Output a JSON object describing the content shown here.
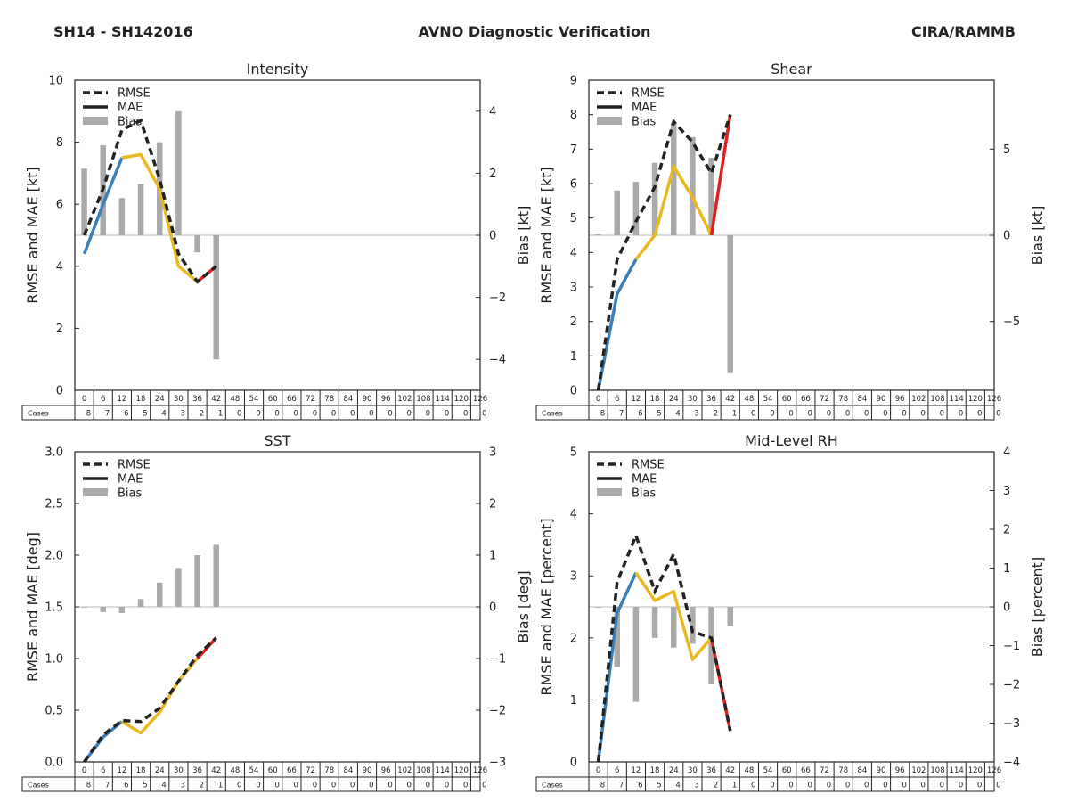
{
  "header": {
    "left": "SH14 - SH142016",
    "center": "AVNO Diagnostic Verification",
    "right": "CIRA/RAMMB"
  },
  "legend_labels": [
    "RMSE",
    "MAE",
    "Bias"
  ],
  "colors": {
    "rmse": "#222222",
    "mae_segments": [
      "#3a7fb9",
      "#e8b922",
      "#e02020"
    ],
    "bias": "#aaaaaa",
    "zero_line": "#bbbbbb"
  },
  "cases_label": "Cases",
  "hours": [
    0,
    6,
    12,
    18,
    24,
    30,
    36,
    42,
    48,
    54,
    60,
    66,
    72,
    78,
    84,
    90,
    96,
    102,
    108,
    114,
    120,
    126
  ],
  "cases": [
    8,
    7,
    6,
    5,
    4,
    3,
    2,
    1,
    0,
    0,
    0,
    0,
    0,
    0,
    0,
    0,
    0,
    0,
    0,
    0,
    0,
    0
  ],
  "chart_data": [
    {
      "type": "line",
      "title": "Intensity",
      "ylabel": "RMSE and MAE [kt]",
      "y2label": "Bias [kt]",
      "ylim": [
        0,
        10
      ],
      "yticks": [
        0,
        2,
        4,
        6,
        8,
        10
      ],
      "ytick_labels": [
        "0",
        "2",
        "4",
        "6",
        "8",
        "10"
      ],
      "y2lim": [
        -5,
        5
      ],
      "y2ticks": [
        -4,
        -2,
        0,
        2,
        4
      ],
      "y2tick_labels": [
        "−4",
        "−2",
        "0",
        "2",
        "4"
      ],
      "x": [
        0,
        6,
        12,
        18,
        24,
        30,
        36,
        42
      ],
      "rmse": [
        5.0,
        6.5,
        8.4,
        8.7,
        6.8,
        4.4,
        3.5,
        4.0
      ],
      "mae": [
        4.4,
        6.0,
        7.5,
        7.6,
        6.5,
        4.0,
        3.5,
        4.0
      ],
      "mae_segment_ends": [
        2,
        6,
        7
      ],
      "bias": [
        2.15,
        2.9,
        1.2,
        1.65,
        3.0,
        4.0,
        -0.55,
        -4.0
      ]
    },
    {
      "type": "line",
      "title": "Shear",
      "ylabel": "RMSE and MAE [kt]",
      "y2label": "Bias [kt]",
      "ylim": [
        0,
        9
      ],
      "yticks": [
        0,
        1,
        2,
        3,
        4,
        5,
        6,
        7,
        8,
        9
      ],
      "ytick_labels": [
        "0",
        "1",
        "2",
        "3",
        "4",
        "5",
        "6",
        "7",
        "8",
        "9"
      ],
      "y2lim": [
        -9,
        9
      ],
      "y2ticks": [
        -5,
        0,
        5
      ],
      "y2tick_labels": [
        "−5",
        "0",
        "5"
      ],
      "x": [
        0,
        6,
        12,
        18,
        24,
        30,
        36,
        42
      ],
      "rmse": [
        0.0,
        3.8,
        4.9,
        5.9,
        7.8,
        7.2,
        6.3,
        8.0
      ],
      "mae": [
        0.0,
        2.8,
        3.8,
        4.5,
        6.5,
        5.6,
        4.5,
        8.0
      ],
      "mae_segment_ends": [
        2,
        6,
        7
      ],
      "bias": [
        0.05,
        2.6,
        3.1,
        4.2,
        6.5,
        5.7,
        4.5,
        -8.0
      ]
    },
    {
      "type": "line",
      "title": "SST",
      "ylabel": "RMSE and MAE [deg]",
      "y2label": "Bias [deg]",
      "ylim": [
        0,
        3
      ],
      "yticks": [
        0,
        0.5,
        1.0,
        1.5,
        2.0,
        2.5,
        3.0
      ],
      "ytick_labels": [
        "0.0",
        "0.5",
        "1.0",
        "1.5",
        "2.0",
        "2.5",
        "3.0"
      ],
      "y2lim": [
        -3,
        3
      ],
      "y2ticks": [
        -3,
        -2,
        -1,
        0,
        1,
        2,
        3
      ],
      "y2tick_labels": [
        "−3",
        "−2",
        "−1",
        "0",
        "1",
        "2",
        "3"
      ],
      "x": [
        0,
        6,
        12,
        18,
        24,
        30,
        36,
        42
      ],
      "rmse": [
        0.0,
        0.26,
        0.4,
        0.39,
        0.52,
        0.78,
        1.03,
        1.2
      ],
      "mae": [
        0.0,
        0.24,
        0.39,
        0.28,
        0.48,
        0.78,
        1.0,
        1.2
      ],
      "mae_segment_ends": [
        2,
        6,
        7
      ],
      "bias": [
        0.0,
        -0.1,
        -0.12,
        0.15,
        0.47,
        0.75,
        1.0,
        1.2
      ]
    },
    {
      "type": "line",
      "title": "Mid-Level RH",
      "ylabel": "RMSE and MAE [percent]",
      "y2label": "Bias [percent]",
      "ylim": [
        0,
        5
      ],
      "yticks": [
        0,
        1,
        2,
        3,
        4,
        5
      ],
      "ytick_labels": [
        "0",
        "1",
        "2",
        "3",
        "4",
        "5"
      ],
      "y2lim": [
        -4,
        4
      ],
      "y2ticks": [
        -4,
        -3,
        -2,
        -1,
        0,
        1,
        2,
        3,
        4
      ],
      "y2tick_labels": [
        "−4",
        "−3",
        "−2",
        "−1",
        "0",
        "1",
        "2",
        "3",
        "4"
      ],
      "x": [
        0,
        6,
        12,
        18,
        24,
        30,
        36,
        42
      ],
      "rmse": [
        0.0,
        2.9,
        3.65,
        2.75,
        3.35,
        2.1,
        2.0,
        0.5
      ],
      "mae": [
        0.0,
        2.4,
        3.05,
        2.6,
        2.75,
        1.65,
        2.0,
        0.5
      ],
      "mae_segment_ends": [
        2,
        6,
        7
      ],
      "bias": [
        0.0,
        -1.55,
        -2.45,
        -0.8,
        -1.05,
        -0.95,
        -2.0,
        -0.5
      ]
    }
  ]
}
